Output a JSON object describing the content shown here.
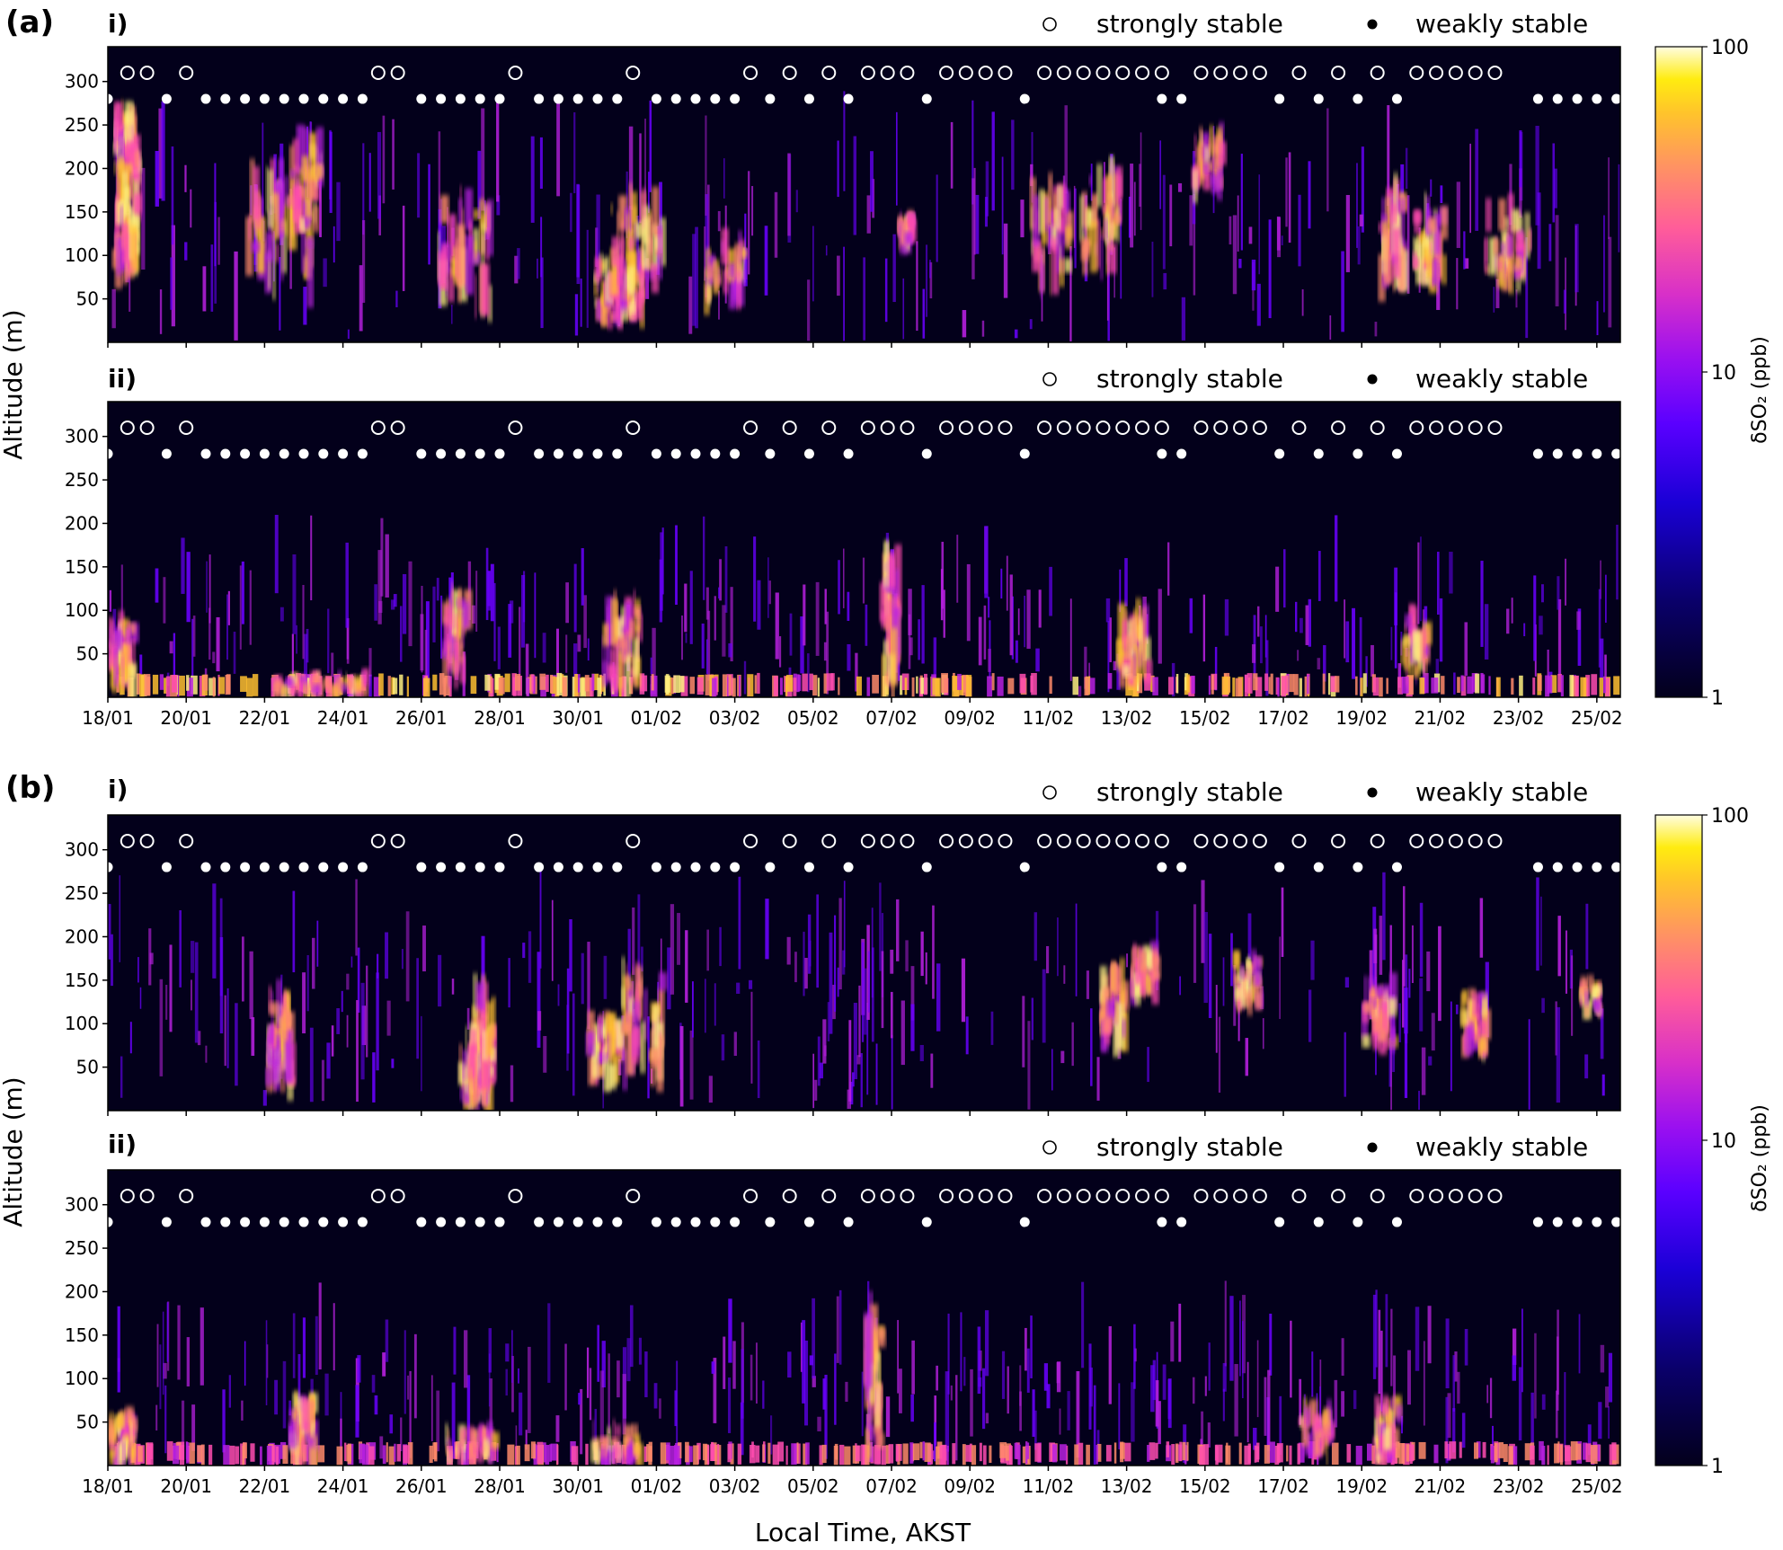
{
  "figure": {
    "panel_labels": [
      "(a)",
      "(b)"
    ],
    "sub_labels": [
      "i)",
      "ii)"
    ],
    "legend": {
      "strong": "strongly stable",
      "weak": "weakly stable"
    },
    "ylabel": "Altitude (m)",
    "xlabel": "Local Time, AKST",
    "colorbar_label": "δSO₂ (ppb)",
    "colorbar_ticks": [
      "100",
      "10",
      "1"
    ],
    "background_color": "#03001b"
  },
  "chart_data": {
    "type": "heatmap",
    "title": "",
    "xlabel": "Local Time, AKST",
    "ylabel": "Altitude (m)",
    "colorbar": {
      "label": "δSO₂ (ppb)",
      "scale": "log",
      "range": [
        1,
        100
      ],
      "colormap": "gnuplot2",
      "ticks": [
        1,
        10,
        100
      ]
    },
    "x_ticks": [
      "18/01",
      "20/01",
      "22/01",
      "24/01",
      "26/01",
      "28/01",
      "30/01",
      "01/02",
      "03/02",
      "05/02",
      "07/02",
      "09/02",
      "11/02",
      "13/02",
      "15/02",
      "17/02",
      "19/02",
      "21/02",
      "23/02",
      "25/02"
    ],
    "x_range_days": [
      0,
      38.6
    ],
    "y_ticks": [
      50,
      100,
      150,
      200,
      250,
      300
    ],
    "y_range": [
      0,
      340
    ],
    "stability_legend": {
      "strongly_stable": "open circle",
      "weakly_stable": "filled dot"
    },
    "strongly_stable_days": [
      0.5,
      1.0,
      2.0,
      6.9,
      7.4,
      10.4,
      13.4,
      16.4,
      17.4,
      18.4,
      19.4,
      19.9,
      20.4,
      21.4,
      21.9,
      22.4,
      22.9,
      23.9,
      24.4,
      24.9,
      25.4,
      25.9,
      26.4,
      26.9,
      27.9,
      28.4,
      28.9,
      29.4,
      30.4,
      31.4,
      32.4,
      33.4,
      33.9,
      34.4,
      34.9,
      35.4
    ],
    "weakly_stable_days": [
      0.0,
      1.5,
      2.5,
      3.0,
      3.5,
      4.0,
      4.5,
      5.0,
      5.5,
      6.0,
      6.5,
      8.0,
      8.5,
      9.0,
      9.5,
      10.0,
      11.0,
      11.5,
      12.0,
      12.5,
      13.0,
      14.0,
      14.5,
      15.0,
      15.5,
      16.0,
      16.9,
      17.9,
      18.9,
      20.9,
      23.4,
      26.9,
      27.4,
      29.9,
      30.9,
      31.9,
      32.9,
      36.5,
      37.0,
      37.5,
      38.0,
      38.5
    ],
    "panels": [
      {
        "id": "a-i",
        "hotspots": [
          [
            0.4,
            230,
            0.25,
            40,
            60
          ],
          [
            0.4,
            140,
            0.3,
            60,
            50
          ],
          [
            4.3,
            130,
            0.8,
            70,
            45
          ],
          [
            5.0,
            180,
            0.4,
            60,
            35
          ],
          [
            9.1,
            100,
            0.7,
            70,
            45
          ],
          [
            13.0,
            60,
            0.6,
            40,
            70
          ],
          [
            13.5,
            110,
            0.7,
            60,
            50
          ],
          [
            15.7,
            80,
            0.5,
            40,
            35
          ],
          [
            20.3,
            130,
            0.15,
            20,
            30
          ],
          [
            24.0,
            120,
            0.5,
            60,
            35
          ],
          [
            25.3,
            140,
            0.5,
            60,
            40
          ],
          [
            28.0,
            210,
            0.4,
            40,
            35
          ],
          [
            32.7,
            120,
            0.3,
            60,
            40
          ],
          [
            33.7,
            110,
            0.4,
            50,
            40
          ],
          [
            35.7,
            110,
            0.6,
            50,
            40
          ]
        ]
      },
      {
        "id": "a-ii",
        "hotspots": [
          [
            0.3,
            50,
            0.3,
            40,
            50
          ],
          [
            5.4,
            15,
            1.2,
            12,
            55
          ],
          [
            8.8,
            70,
            0.3,
            50,
            40
          ],
          [
            13.1,
            60,
            0.5,
            50,
            40
          ],
          [
            19.9,
            90,
            0.2,
            90,
            35
          ],
          [
            26.1,
            60,
            0.4,
            40,
            35
          ],
          [
            33.3,
            60,
            0.3,
            40,
            30
          ]
        ]
      },
      {
        "id": "b-i",
        "hotspots": [
          [
            4.3,
            80,
            0.3,
            60,
            55
          ],
          [
            9.3,
            50,
            0.35,
            50,
            55
          ],
          [
            9.5,
            80,
            0.3,
            70,
            45
          ],
          [
            12.6,
            70,
            0.4,
            40,
            40
          ],
          [
            13.6,
            100,
            0.5,
            70,
            40
          ],
          [
            25.6,
            120,
            0.3,
            50,
            40
          ],
          [
            26.4,
            160,
            0.3,
            30,
            40
          ],
          [
            29.0,
            150,
            0.3,
            30,
            35
          ],
          [
            32.4,
            110,
            0.4,
            40,
            40
          ],
          [
            34.8,
            100,
            0.3,
            40,
            35
          ],
          [
            37.8,
            130,
            0.3,
            20,
            30
          ]
        ]
      },
      {
        "id": "b-ii",
        "hotspots": [
          [
            0.3,
            30,
            0.3,
            30,
            50
          ],
          [
            4.9,
            40,
            0.3,
            40,
            45
          ],
          [
            9.2,
            25,
            0.6,
            20,
            45
          ],
          [
            12.9,
            25,
            0.6,
            20,
            40
          ],
          [
            19.5,
            90,
            0.2,
            90,
            35
          ],
          [
            30.8,
            40,
            0.4,
            30,
            40
          ],
          [
            32.6,
            40,
            0.3,
            40,
            35
          ]
        ]
      }
    ]
  }
}
